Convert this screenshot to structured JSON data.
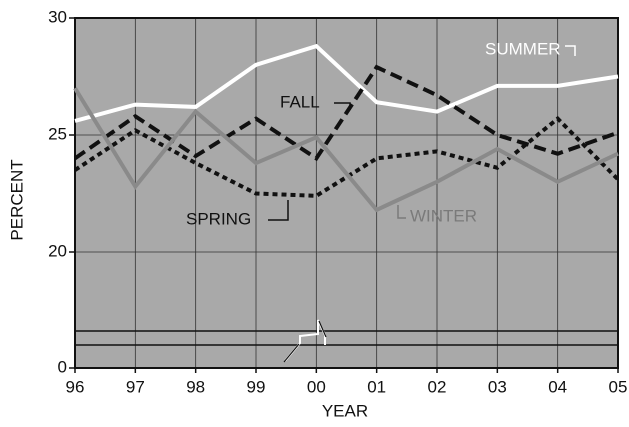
{
  "chart_data": {
    "type": "line",
    "categories": [
      "96",
      "97",
      "98",
      "99",
      "00",
      "01",
      "02",
      "03",
      "04",
      "05"
    ],
    "series": [
      {
        "name": "SUMMER",
        "color": "#ffffff",
        "style": "solid",
        "values": [
          25.6,
          26.3,
          26.2,
          28.0,
          28.8,
          26.4,
          26.0,
          27.1,
          27.1,
          27.5
        ]
      },
      {
        "name": "FALL",
        "color": "#111111",
        "style": "dashed",
        "values": [
          24.0,
          25.8,
          24.1,
          25.7,
          24.0,
          27.9,
          26.7,
          25.0,
          24.2,
          25.1
        ]
      },
      {
        "name": "SPRING",
        "color": "#111111",
        "style": "dotted",
        "values": [
          23.5,
          25.2,
          23.8,
          22.5,
          22.4,
          24.0,
          24.3,
          23.6,
          25.7,
          23.1
        ]
      },
      {
        "name": "WINTER",
        "color": "#8a8a8a",
        "style": "solid",
        "values": [
          27.0,
          22.8,
          26.0,
          23.8,
          24.9,
          21.8,
          23.0,
          24.4,
          23.0,
          24.2
        ]
      }
    ],
    "xlabel": "YEAR",
    "ylabel": "PERCENT",
    "ylim": [
      0,
      30
    ],
    "yticks": [
      0,
      20,
      25,
      30
    ],
    "axis_break": [
      0,
      20
    ],
    "grid": true
  }
}
